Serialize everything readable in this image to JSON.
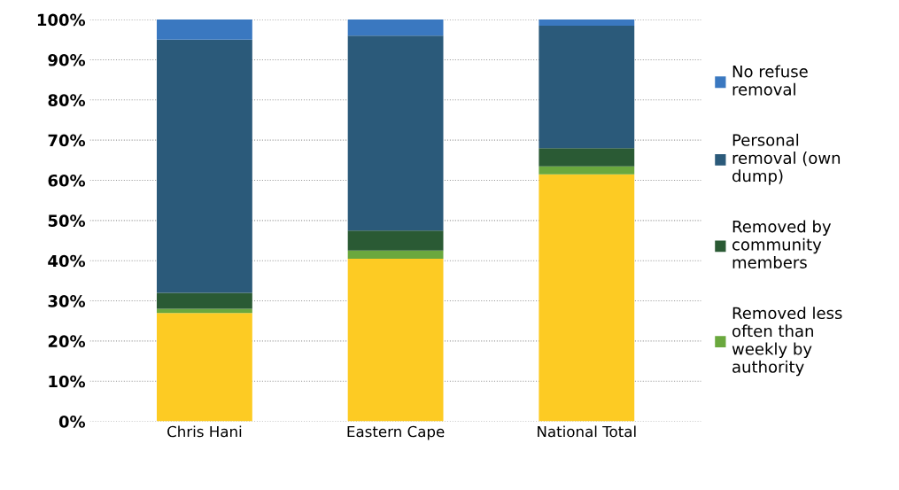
{
  "chart_data": {
    "type": "bar",
    "stacked": true,
    "categories": [
      "Chris Hani",
      "Eastern Cape",
      "National Total"
    ],
    "series": [
      {
        "color": "#fdcb23",
        "values": [
          27,
          40.5,
          61.5
        ]
      },
      {
        "name": "Removed less often than weekly by authority",
        "color": "#6aa83e",
        "values": [
          1,
          2,
          2
        ]
      },
      {
        "name": "Removed by community members",
        "color": "#2a5a34",
        "values": [
          4,
          5,
          4.5
        ]
      },
      {
        "name": "Personal removal (own dump)",
        "color": "#2b5a7a",
        "values": [
          63,
          48.5,
          30.5
        ]
      },
      {
        "name": "No refuse removal",
        "color": "#3a78c0",
        "values": [
          5,
          4,
          1.5
        ]
      }
    ],
    "ylim": [
      0,
      100
    ],
    "yticks": [
      {
        "value": 0,
        "label": "0%"
      },
      {
        "value": 10,
        "label": "10%"
      },
      {
        "value": 20,
        "label": "20%"
      },
      {
        "value": 30,
        "label": "30%"
      },
      {
        "value": 40,
        "label": "40%"
      },
      {
        "value": 50,
        "label": "50%"
      },
      {
        "value": 60,
        "label": "60%"
      },
      {
        "value": 70,
        "label": "70%"
      },
      {
        "value": 80,
        "label": "80%"
      },
      {
        "value": 90,
        "label": "90%"
      },
      {
        "value": 100,
        "label": "100%"
      }
    ],
    "grid": "y",
    "legend": "right"
  }
}
